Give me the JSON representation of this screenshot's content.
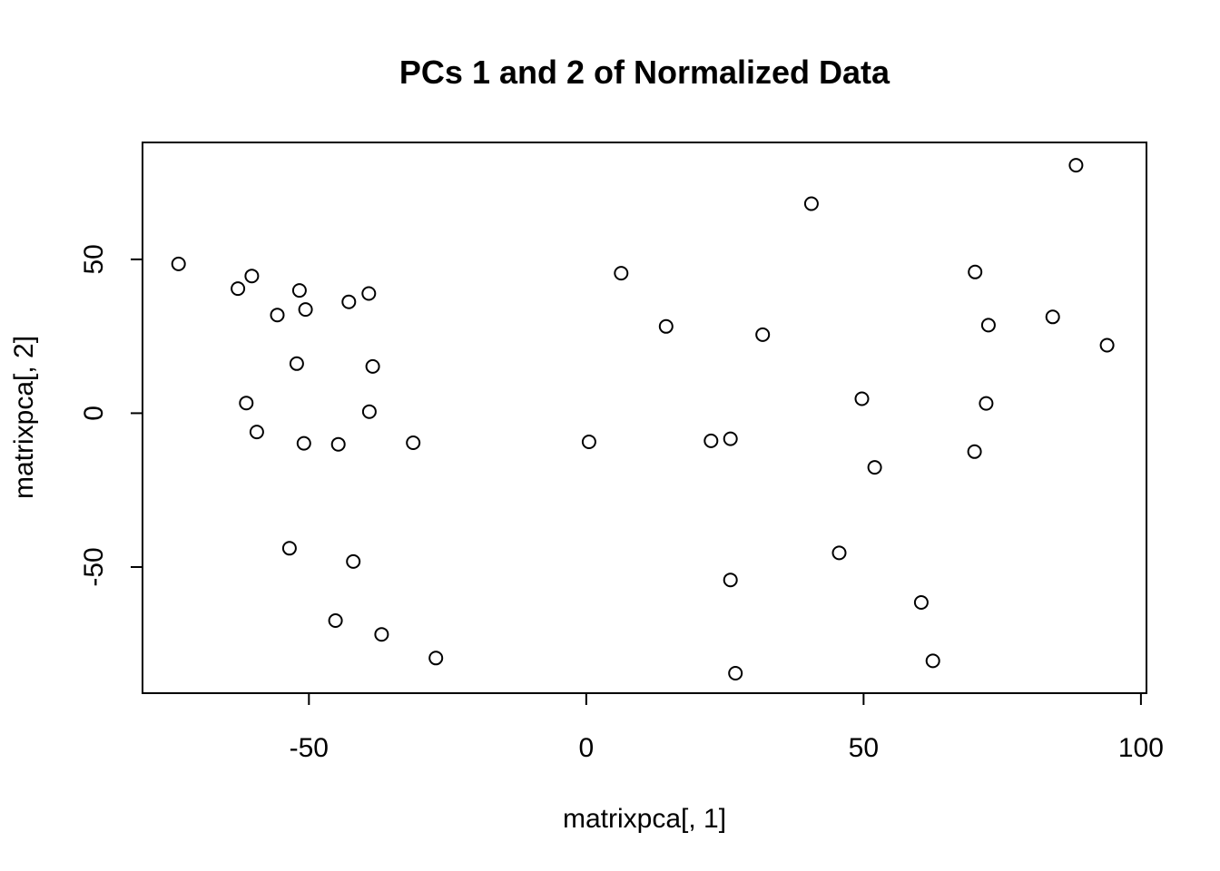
{
  "chart_data": {
    "type": "scatter",
    "title": "PCs 1 and 2 of Normalized Data",
    "xlabel": "matrixpca[, 1]",
    "ylabel": "matrixpca[, 2]",
    "xlim": [
      -80,
      101
    ],
    "ylim": [
      -91,
      88
    ],
    "x_ticks": [
      -50,
      0,
      50,
      100
    ],
    "x_tick_labels": [
      "-50",
      "0",
      "50",
      "100"
    ],
    "y_ticks": [
      -50,
      0,
      50
    ],
    "y_tick_labels": [
      "-50",
      "0",
      "50"
    ],
    "grid": false,
    "legend": "none",
    "marker": "open-circle",
    "points": [
      {
        "x": -73.5,
        "y": 48.5
      },
      {
        "x": -62.8,
        "y": 40.5
      },
      {
        "x": -60.3,
        "y": 44.6
      },
      {
        "x": -51.7,
        "y": 39.9
      },
      {
        "x": -55.7,
        "y": 31.9
      },
      {
        "x": -50.6,
        "y": 33.7
      },
      {
        "x": -42.8,
        "y": 36.2
      },
      {
        "x": -39.2,
        "y": 38.9
      },
      {
        "x": -52.2,
        "y": 16.1
      },
      {
        "x": -38.5,
        "y": 15.2
      },
      {
        "x": -61.3,
        "y": 3.3
      },
      {
        "x": -39.1,
        "y": 0.5
      },
      {
        "x": -59.4,
        "y": -6.1
      },
      {
        "x": -50.9,
        "y": -9.8
      },
      {
        "x": -44.7,
        "y": -10.1
      },
      {
        "x": -31.2,
        "y": -9.6
      },
      {
        "x": -53.5,
        "y": -43.9
      },
      {
        "x": -42.0,
        "y": -48.2
      },
      {
        "x": -45.2,
        "y": -67.4
      },
      {
        "x": -36.9,
        "y": -71.9
      },
      {
        "x": -27.1,
        "y": -79.6
      },
      {
        "x": 0.5,
        "y": -9.3
      },
      {
        "x": 6.3,
        "y": 45.5
      },
      {
        "x": 14.4,
        "y": 28.2
      },
      {
        "x": 22.5,
        "y": -9.0
      },
      {
        "x": 26.0,
        "y": -8.3
      },
      {
        "x": 31.8,
        "y": 25.5
      },
      {
        "x": 40.6,
        "y": 68.1
      },
      {
        "x": 26.0,
        "y": -54.2
      },
      {
        "x": 26.9,
        "y": -84.5
      },
      {
        "x": 45.6,
        "y": -45.4
      },
      {
        "x": 49.7,
        "y": 4.7
      },
      {
        "x": 52.0,
        "y": -17.6
      },
      {
        "x": 60.4,
        "y": -61.5
      },
      {
        "x": 62.5,
        "y": -80.5
      },
      {
        "x": 70.1,
        "y": 45.9
      },
      {
        "x": 72.5,
        "y": 28.6
      },
      {
        "x": 72.1,
        "y": 3.2
      },
      {
        "x": 70.0,
        "y": -12.5
      },
      {
        "x": 84.1,
        "y": 31.3
      },
      {
        "x": 88.3,
        "y": 80.6
      },
      {
        "x": 93.9,
        "y": 22.1
      }
    ]
  }
}
